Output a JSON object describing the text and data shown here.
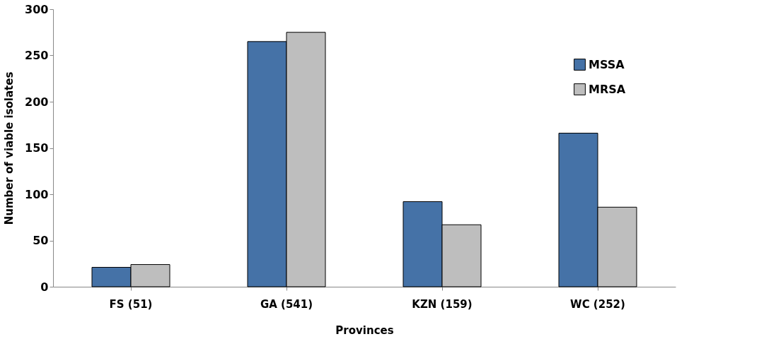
{
  "chart_data": {
    "type": "bar",
    "xlabel": "Provinces",
    "ylabel": "Number of viable isolates",
    "categories": [
      "FS (51)",
      "GA (541)",
      "KZN (159)",
      "WC (252)"
    ],
    "series": [
      {
        "name": "MSSA",
        "color": "#4572a7",
        "values": [
          21,
          265,
          92,
          166
        ]
      },
      {
        "name": "MRSA",
        "color": "#bebebe",
        "values": [
          24,
          275,
          67,
          86
        ]
      }
    ],
    "ylim": [
      0,
      300
    ],
    "yticks": [
      0,
      50,
      100,
      150,
      200,
      250,
      300
    ],
    "grid": false,
    "legend": "top right"
  }
}
